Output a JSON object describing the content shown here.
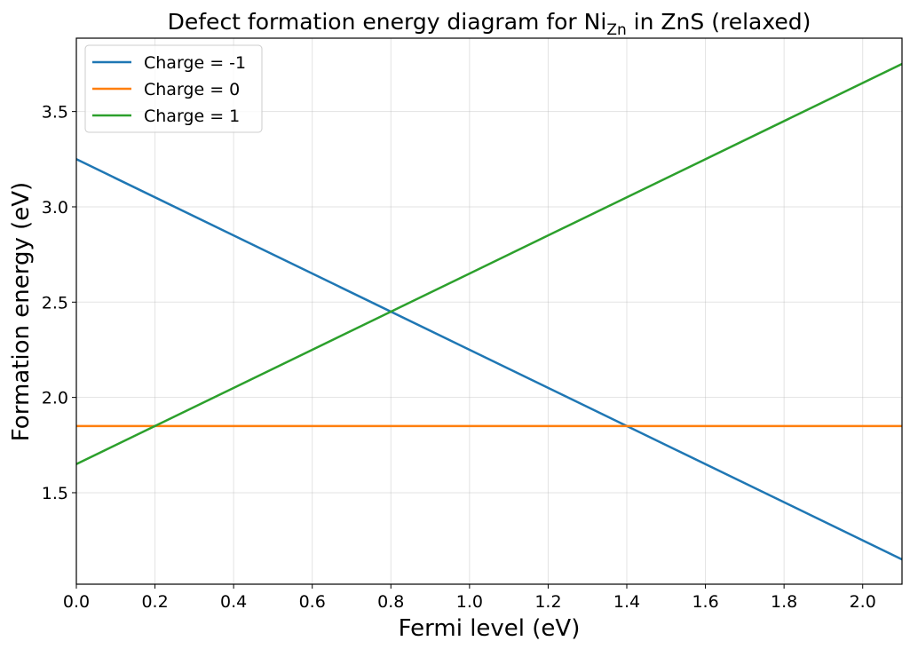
{
  "chart_data": {
    "type": "line",
    "title": {
      "prefix": "Defect formation energy diagram for Ni",
      "subscript": "Zn",
      "suffix": " in ZnS (relaxed)"
    },
    "xlabel": "Fermi level (eV)",
    "ylabel": "Formation energy (eV)",
    "xlim": [
      0.0,
      2.1
    ],
    "ylim": [
      1.02,
      3.885
    ],
    "xticks": [
      0.0,
      0.2,
      0.4,
      0.6,
      0.8,
      1.0,
      1.2,
      1.4,
      1.6,
      1.8,
      2.0
    ],
    "xtick_labels": [
      "0.0",
      "0.2",
      "0.4",
      "0.6",
      "0.8",
      "1.0",
      "1.2",
      "1.4",
      "1.6",
      "1.8",
      "2.0"
    ],
    "yticks": [
      1.5,
      2.0,
      2.5,
      3.0,
      3.5
    ],
    "ytick_labels": [
      "1.5",
      "2.0",
      "2.5",
      "3.0",
      "3.5"
    ],
    "grid": true,
    "legend_position": "top-left",
    "series": [
      {
        "name": "Charge = -1",
        "color": "#1f77b4",
        "x": [
          0.0,
          2.1
        ],
        "y": [
          3.25,
          1.15
        ]
      },
      {
        "name": "Charge = 0",
        "color": "#ff7f0e",
        "x": [
          0.0,
          2.1
        ],
        "y": [
          1.85,
          1.85
        ]
      },
      {
        "name": "Charge = 1",
        "color": "#2ca02c",
        "x": [
          0.0,
          2.1
        ],
        "y": [
          1.65,
          3.75
        ]
      }
    ]
  }
}
